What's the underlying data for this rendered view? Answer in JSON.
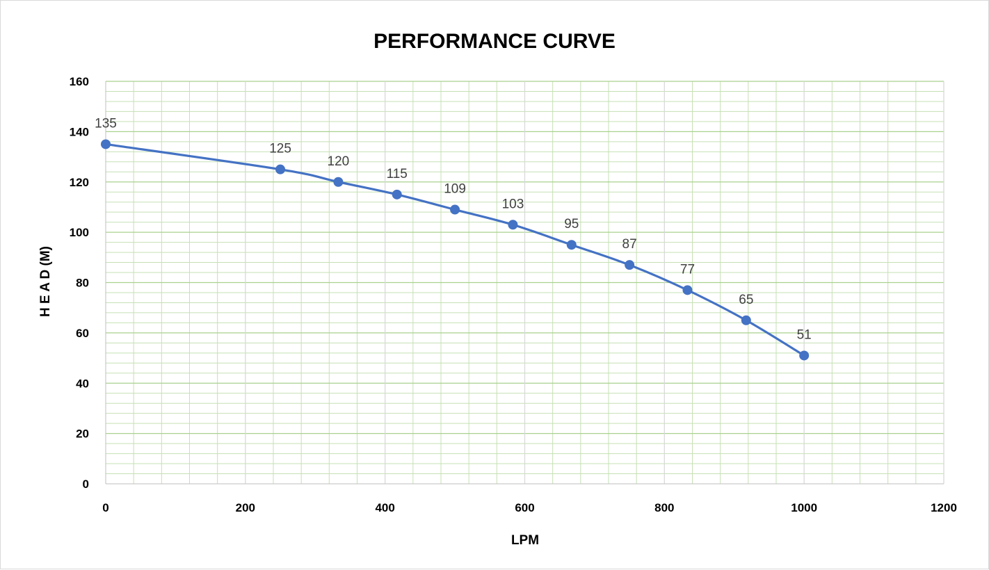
{
  "chart_data": {
    "type": "line",
    "title": "PERFORMANCE CURVE",
    "xlabel": "LPM",
    "ylabel": "H E A D (M)",
    "xlim": [
      0,
      1200
    ],
    "ylim": [
      0,
      160
    ],
    "x_ticks": [
      "0",
      "200",
      "400",
      "600",
      "800",
      "1000",
      "1200"
    ],
    "y_ticks": [
      "0",
      "20",
      "40",
      "60",
      "80",
      "100",
      "120",
      "140",
      "160"
    ],
    "x_major_step": 200,
    "x_minor_step": 40,
    "y_major_step": 20,
    "y_minor_step": 4,
    "grid": true,
    "smooth": true,
    "series": [
      {
        "points": [
          {
            "x": 0,
            "y": 135,
            "label": "135"
          },
          {
            "x": 250,
            "y": 125,
            "label": "125"
          },
          {
            "x": 333,
            "y": 120,
            "label": "120"
          },
          {
            "x": 417,
            "y": 115,
            "label": "115"
          },
          {
            "x": 500,
            "y": 109,
            "label": "109"
          },
          {
            "x": 583,
            "y": 103,
            "label": "103"
          },
          {
            "x": 667,
            "y": 95,
            "label": "95"
          },
          {
            "x": 750,
            "y": 87,
            "label": "87"
          },
          {
            "x": 833,
            "y": 77,
            "label": "77"
          },
          {
            "x": 917,
            "y": 65,
            "label": "65"
          },
          {
            "x": 1000,
            "y": 51,
            "label": "51"
          }
        ]
      }
    ],
    "colors": {
      "line": "#4472C4",
      "marker": "#4472C4",
      "major_grid_vertical": "#d9d9d9",
      "minor_grid": "#c6e0b4",
      "major_grid_horizontal": "#a9d18e",
      "axis": "#bfbfbf"
    }
  }
}
